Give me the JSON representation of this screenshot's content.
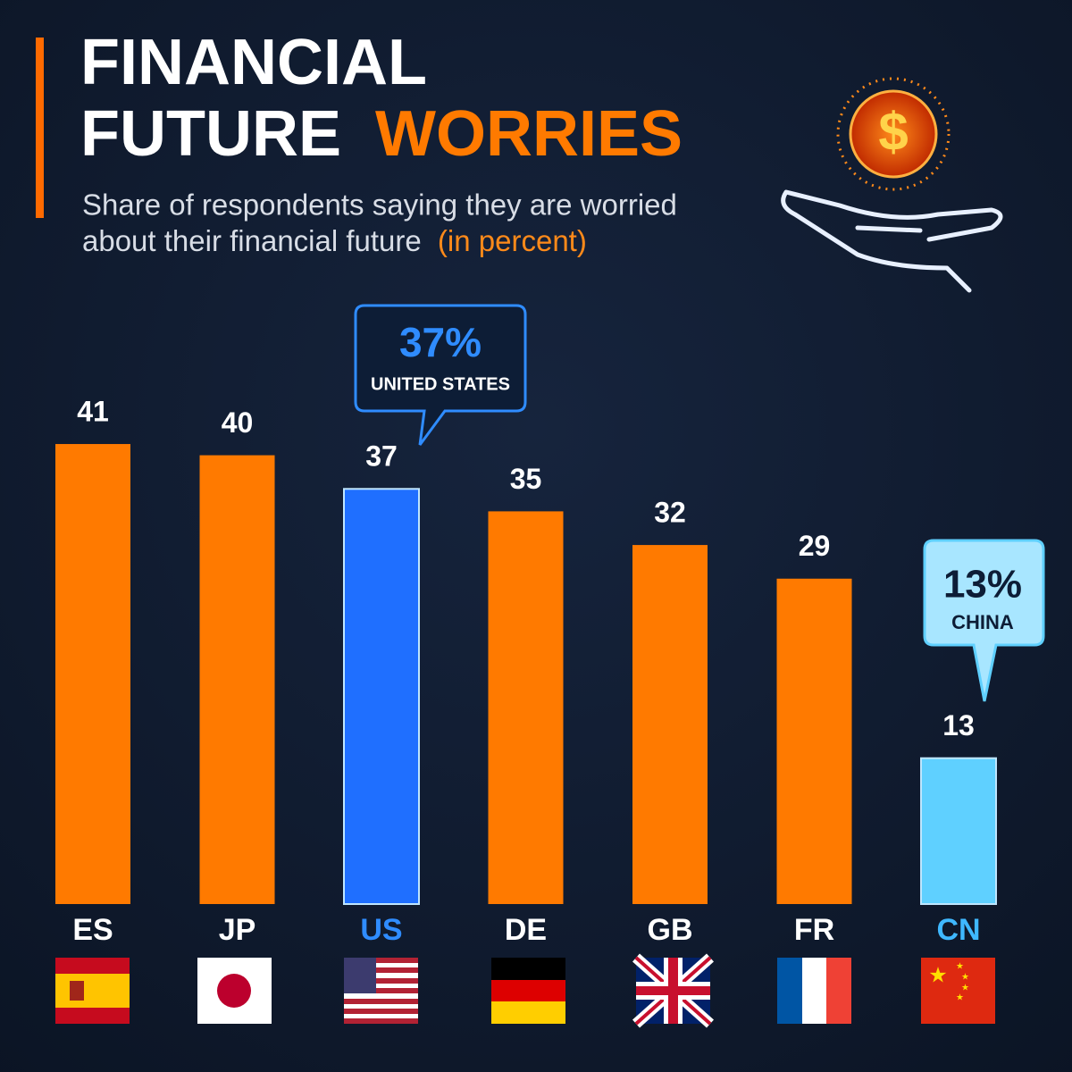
{
  "chart_data": {
    "type": "bar",
    "title": [
      "FINANCIAL",
      "FUTURE",
      "WORRIES"
    ],
    "subtitle": [
      "Share of respondents saying they are worried",
      "about their financial future",
      "(in percent)"
    ],
    "categories": [
      "ES",
      "JP",
      "US",
      "DE",
      "GB",
      "FR",
      "CN"
    ],
    "values": [
      41,
      40,
      37,
      35,
      32,
      29,
      13
    ],
    "colors": [
      "#ff7a00",
      "#ff7a00",
      "#1f6fff",
      "#ff7a00",
      "#ff7a00",
      "#ff7a00",
      "#5fd0ff"
    ],
    "label_colors": [
      "#ffffff",
      "#ffffff",
      "#2f8cff",
      "#ffffff",
      "#ffffff",
      "#ffffff",
      "#3fb8ff"
    ],
    "annotations": [
      {
        "text": "37%",
        "subtext": "UNITED STATES"
      },
      {
        "text": "13%",
        "subtext": "CHINA"
      }
    ]
  }
}
